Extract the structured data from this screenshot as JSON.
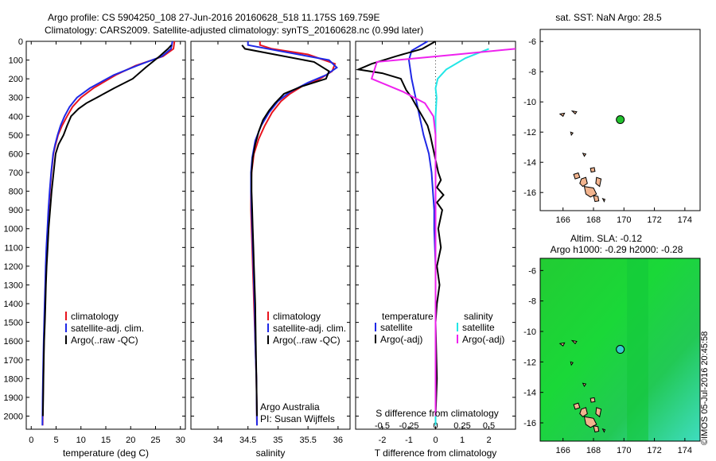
{
  "header": {
    "title_line1": "Argo profile: CS 5904250_108 27-Jun-2016 20160628_518 11.175S 169.759E",
    "title_line2": "Climatology: CARS2009. Satellite-adjusted climatology: synTS_20160628.nc (0.99d later)"
  },
  "stamp": "©IMOS 05-Jul-2016 20:45:58",
  "colors": {
    "climatology": "#e8141e",
    "satellite": "#1f28e6",
    "argo": "#000000",
    "sal_satellite": "#22e6e6",
    "sal_argo": "#ee22ee",
    "land": "#f2b48e",
    "float_marker": "#22c22e"
  },
  "depth_axis": {
    "ticks": [
      0,
      100,
      200,
      300,
      400,
      500,
      600,
      700,
      800,
      900,
      1000,
      1100,
      1200,
      1300,
      1400,
      1500,
      1600,
      1700,
      1800,
      1900,
      2000
    ],
    "range": [
      0,
      2070
    ]
  },
  "panels": {
    "temperature": {
      "xlabel": "temperature (deg C)",
      "legend": [
        "climatology",
        "satellite-adj. clim.",
        "Argo(..raw -QC)"
      ]
    },
    "salinity": {
      "xlabel": "salinity",
      "legend": [
        "climatology",
        "satellite-adj. clim.",
        "Argo(..raw -QC)"
      ],
      "credit_line1": "Argo Australia",
      "credit_line2": "PI: Susan Wijffels"
    },
    "difference": {
      "xlabel": "T difference from climatology",
      "toplabel": "S difference from climatology",
      "legend_t_title": "temperature",
      "legend_s_title": "salinity",
      "legend_t": [
        "satellite",
        "Argo(-adj)"
      ],
      "legend_s": [
        "satellite",
        "Argo(-adj)"
      ]
    },
    "sst_map": {
      "title": "sat. SST: NaN Argo: 28.5"
    },
    "sla_map": {
      "title_line1": "Altim. SLA: -0.12",
      "title_line2": "Argo h1000: -0.29 h2000: -0.28"
    }
  },
  "chart_data": [
    {
      "type": "line",
      "title": "",
      "xlabel": "temperature (deg C)",
      "ylabel": "",
      "xlim": [
        -1,
        31
      ],
      "ylim": [
        2070,
        0
      ],
      "xticks": [
        0,
        5,
        10,
        15,
        20,
        25,
        30
      ],
      "series": [
        {
          "name": "climatology",
          "x": [
            28.8,
            28.6,
            26.5,
            21,
            17,
            12.5,
            10,
            8.3,
            7.2,
            6.2,
            5.4,
            4.9,
            4.45,
            4.05,
            3.75,
            3.5,
            3.3,
            3.1,
            2.95,
            2.85,
            2.75,
            2.65,
            2.55,
            2.48,
            2.42,
            2.36,
            2.3
          ],
          "y": [
            0,
            40,
            80,
            130,
            180,
            250,
            300,
            350,
            400,
            450,
            500,
            550,
            600,
            700,
            800,
            900,
            1000,
            1100,
            1200,
            1300,
            1400,
            1500,
            1600,
            1700,
            1800,
            1900,
            2050
          ]
        },
        {
          "name": "satellite-adj. clim.",
          "x": [
            28.4,
            28.1,
            26.3,
            21.3,
            16.6,
            11.8,
            9.2,
            7.7,
            6.7,
            5.9,
            5.3,
            4.8,
            4.4,
            4.0,
            3.7,
            3.45,
            3.25,
            3.05,
            2.9,
            2.8,
            2.7,
            2.6,
            2.5,
            2.42,
            2.36,
            2.3,
            2.25
          ],
          "y": [
            0,
            40,
            80,
            130,
            180,
            250,
            300,
            350,
            400,
            450,
            500,
            550,
            600,
            700,
            800,
            900,
            1000,
            1100,
            1200,
            1300,
            1400,
            1500,
            1600,
            1700,
            1800,
            1900,
            2050
          ]
        },
        {
          "name": "Argo(..raw -QC)",
          "x": [
            28.2,
            27.5,
            25.8,
            23.0,
            20.4,
            16.7,
            13.2,
            11.1,
            9.5,
            8.0,
            7.2,
            6.5,
            5.5,
            4.9,
            4.5,
            4.1,
            3.8,
            3.5,
            3.3,
            3.1,
            2.95,
            2.85,
            2.75,
            2.6,
            2.52,
            2.45,
            2.4,
            2.35
          ],
          "y": [
            20,
            40,
            80,
            140,
            200,
            250,
            300,
            330,
            360,
            400,
            450,
            500,
            550,
            600,
            700,
            800,
            900,
            1000,
            1100,
            1200,
            1300,
            1400,
            1500,
            1600,
            1700,
            1800,
            1900,
            2000
          ]
        }
      ]
    },
    {
      "type": "line",
      "title": "",
      "xlabel": "salinity",
      "ylabel": "",
      "xlim": [
        33.55,
        36.2
      ],
      "ylim": [
        2070,
        0
      ],
      "xticks": [
        34,
        34.5,
        35,
        35.5,
        36
      ],
      "series": [
        {
          "name": "climatology",
          "x": [
            34.7,
            34.7,
            34.9,
            35.5,
            35.95,
            35.9,
            35.7,
            35.4,
            35.2,
            35.05,
            34.9,
            34.78,
            34.68,
            34.6,
            34.56,
            34.55,
            34.55,
            34.56,
            34.57,
            34.58,
            34.59,
            34.6,
            34.61,
            34.62,
            34.63,
            34.64,
            34.65
          ],
          "y": [
            0,
            20,
            40,
            70,
            120,
            160,
            200,
            240,
            280,
            320,
            380,
            450,
            520,
            600,
            700,
            800,
            900,
            1000,
            1100,
            1200,
            1300,
            1400,
            1500,
            1600,
            1700,
            1800,
            2050
          ]
        },
        {
          "name": "satellite-adj. clim.",
          "x": [
            34.5,
            34.5,
            35.0,
            35.85,
            35.98,
            35.8,
            35.5,
            35.2,
            35.0,
            34.85,
            34.72,
            34.62,
            34.57,
            34.55,
            34.55,
            34.56,
            34.57,
            34.58,
            34.59,
            34.6,
            34.61,
            34.62,
            34.63,
            34.64,
            34.65
          ],
          "y": [
            0,
            20,
            50,
            100,
            140,
            180,
            220,
            270,
            320,
            380,
            450,
            530,
            620,
            700,
            800,
            900,
            1000,
            1100,
            1200,
            1300,
            1400,
            1600,
            1700,
            1800,
            2050
          ]
        },
        {
          "name": "Argo(..raw -QC)",
          "x": [
            34.4,
            34.45,
            35.6,
            35.85,
            35.8,
            35.4,
            35.1,
            34.95,
            34.85,
            34.75,
            34.68,
            34.62,
            34.58,
            34.56,
            34.56,
            34.57,
            34.58,
            34.59,
            34.6,
            34.61,
            34.62,
            34.63,
            34.64,
            34.65
          ],
          "y": [
            20,
            40,
            110,
            160,
            200,
            240,
            280,
            330,
            370,
            420,
            480,
            550,
            620,
            700,
            800,
            900,
            1000,
            1100,
            1200,
            1300,
            1400,
            1600,
            1800,
            2000
          ]
        }
      ]
    },
    {
      "type": "line",
      "title": "",
      "xlabel": "T difference from climatology",
      "ylabel": "",
      "xlim": [
        -3,
        3
      ],
      "ylim": [
        2070,
        0
      ],
      "xticks": [
        -2,
        -1,
        0,
        1,
        2
      ],
      "top_label": "S difference from climatology",
      "top_xlim": [
        -0.75,
        0.75
      ],
      "top_xticks": [
        -0.5,
        -0.25,
        0,
        0.25,
        0.5
      ],
      "series": [
        {
          "name": "temperature satellite",
          "axis": "T",
          "x": [
            -0.3,
            -0.9,
            -1.0,
            -0.9,
            -0.75,
            -0.6,
            -0.45,
            -0.35,
            -0.25,
            -0.15,
            -0.1,
            -0.05,
            -0.05,
            0.0,
            0.0,
            0.0,
            0.0,
            0.0,
            0.0
          ],
          "y": [
            0,
            50,
            100,
            200,
            300,
            400,
            500,
            550,
            600,
            700,
            800,
            900,
            1000,
            1200,
            1400,
            1600,
            1800,
            1900,
            2050
          ]
        },
        {
          "name": "temperature Argo(-adj)",
          "axis": "T",
          "x": [
            0.0,
            -0.5,
            -1.5,
            -2.4,
            -2.9,
            -2.0,
            -1.3,
            -1.1,
            -0.9,
            -0.7,
            -0.5,
            -0.3,
            -0.2,
            0.1,
            0.2,
            0.05,
            0.3,
            0.05,
            0.25,
            0.1,
            0.2,
            0.05,
            0.15,
            0.05,
            0.0,
            0.05,
            0.0
          ],
          "y": [
            0,
            40,
            80,
            120,
            150,
            170,
            200,
            260,
            300,
            350,
            400,
            450,
            500,
            700,
            740,
            780,
            820,
            860,
            900,
            1000,
            1100,
            1200,
            1300,
            1400,
            1500,
            1800,
            2000
          ]
        },
        {
          "name": "salinity satellite",
          "axis": "S",
          "x": [
            0.5,
            0.28,
            0.1,
            0.02,
            0.0,
            0.01,
            0.0,
            0.0,
            0.0,
            0.0,
            0.0,
            0.0,
            0.0
          ],
          "y": [
            40,
            90,
            150,
            200,
            250,
            300,
            400,
            600,
            800,
            1200,
            1600,
            1800,
            2050
          ]
        },
        {
          "name": "salinity Argo(-adj)",
          "axis": "S",
          "x": [
            0.75,
            0.2,
            -0.55,
            -0.6,
            -0.3,
            -0.1,
            -0.02,
            0.0,
            0.0,
            0.0,
            0.0,
            0.0,
            0.0
          ],
          "y": [
            40,
            70,
            110,
            200,
            270,
            330,
            400,
            500,
            700,
            1000,
            1400,
            1800,
            2000
          ]
        }
      ]
    },
    {
      "type": "scatter",
      "title": "sat. SST: NaN Argo: 28.5",
      "xlabel": "",
      "ylabel": "",
      "xlim": [
        164.5,
        175
      ],
      "ylim": [
        -17.2,
        -5.2
      ],
      "xticks": [
        166,
        168,
        170,
        172,
        174
      ],
      "yticks": [
        -6,
        -8,
        -10,
        -12,
        -14,
        -16
      ],
      "series": [
        {
          "name": "",
          "x": [
            169.759
          ],
          "y": [
            -11.175
          ]
        }
      ]
    },
    {
      "type": "heatmap",
      "title": "Altim. SLA: -0.12",
      "subtitle": "Argo h1000: -0.29 h2000: -0.28",
      "xlabel": "",
      "ylabel": "",
      "xlim": [
        164.5,
        175
      ],
      "ylim": [
        -17.2,
        -5.2
      ],
      "xticks": [
        166,
        168,
        170,
        172,
        174
      ],
      "yticks": [
        -6,
        -8,
        -10,
        -12,
        -14,
        -16
      ],
      "series": [
        {
          "name": "",
          "x": [
            169.759
          ],
          "y": [
            -11.175
          ]
        }
      ]
    }
  ]
}
